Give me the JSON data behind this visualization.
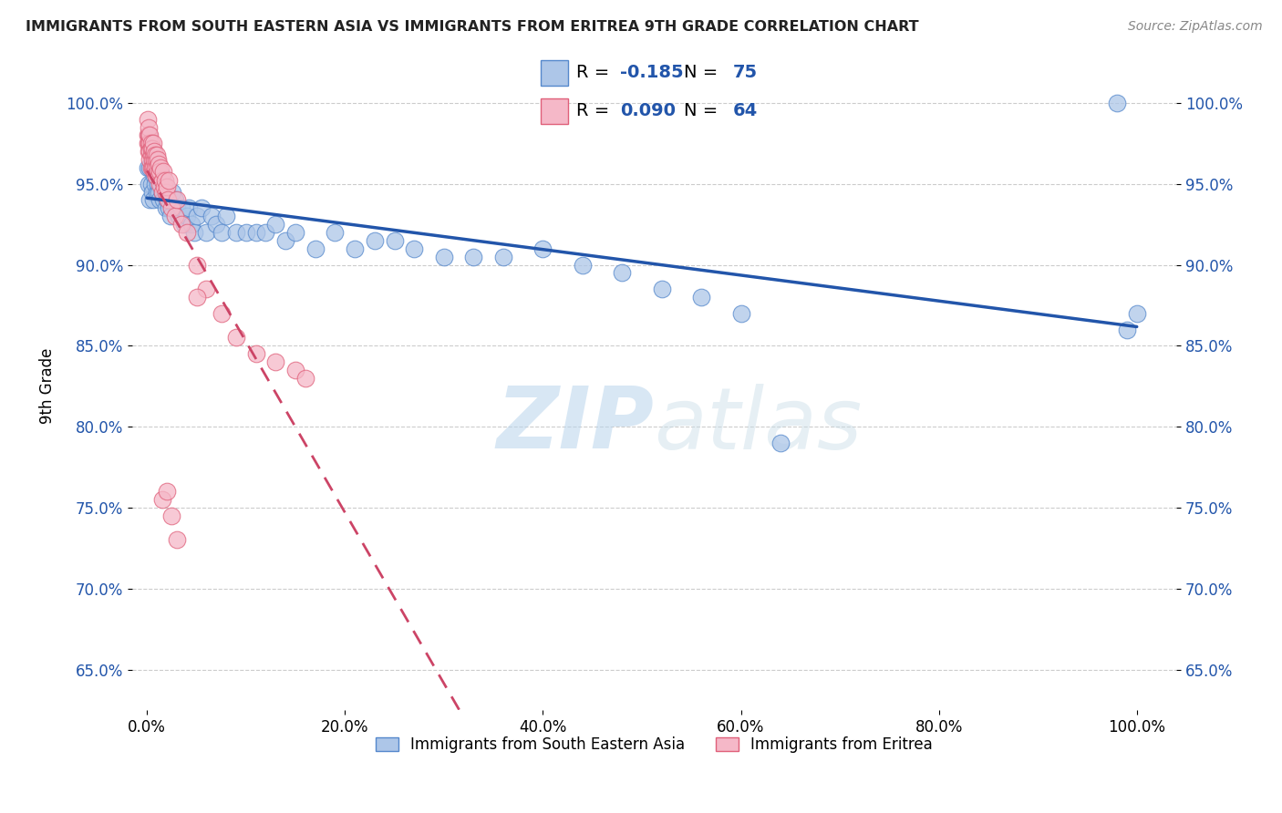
{
  "title": "IMMIGRANTS FROM SOUTH EASTERN ASIA VS IMMIGRANTS FROM ERITREA 9TH GRADE CORRELATION CHART",
  "source_text": "Source: ZipAtlas.com",
  "ylabel": "9th Grade",
  "watermark_zip": "ZIP",
  "watermark_atlas": "atlas",
  "r_blue": -0.185,
  "n_blue": 75,
  "r_pink": 0.09,
  "n_pink": 64,
  "blue_color": "#adc6e8",
  "blue_edge_color": "#5588cc",
  "blue_line_color": "#2255aa",
  "pink_color": "#f5b8c8",
  "pink_edge_color": "#e0607a",
  "pink_line_color": "#cc4466",
  "legend_label_blue": "Immigrants from South Eastern Asia",
  "legend_label_pink": "Immigrants from Eritrea",
  "blue_scatter_x": [
    0.001,
    0.002,
    0.002,
    0.003,
    0.003,
    0.004,
    0.004,
    0.005,
    0.005,
    0.006,
    0.006,
    0.007,
    0.007,
    0.008,
    0.008,
    0.009,
    0.01,
    0.01,
    0.011,
    0.012,
    0.012,
    0.013,
    0.014,
    0.015,
    0.015,
    0.016,
    0.017,
    0.018,
    0.019,
    0.02,
    0.022,
    0.024,
    0.026,
    0.028,
    0.03,
    0.032,
    0.035,
    0.038,
    0.04,
    0.042,
    0.045,
    0.048,
    0.05,
    0.055,
    0.06,
    0.065,
    0.07,
    0.075,
    0.08,
    0.09,
    0.1,
    0.11,
    0.12,
    0.13,
    0.14,
    0.15,
    0.17,
    0.19,
    0.21,
    0.23,
    0.25,
    0.27,
    0.3,
    0.33,
    0.36,
    0.4,
    0.44,
    0.48,
    0.52,
    0.56,
    0.6,
    0.64,
    0.98,
    0.99,
    1.0
  ],
  "blue_scatter_y": [
    0.96,
    0.95,
    0.98,
    0.94,
    0.96,
    0.95,
    0.97,
    0.945,
    0.965,
    0.94,
    0.96,
    0.955,
    0.965,
    0.95,
    0.96,
    0.955,
    0.945,
    0.96,
    0.95,
    0.945,
    0.955,
    0.94,
    0.95,
    0.945,
    0.955,
    0.94,
    0.95,
    0.945,
    0.935,
    0.94,
    0.935,
    0.93,
    0.945,
    0.94,
    0.935,
    0.93,
    0.935,
    0.925,
    0.93,
    0.935,
    0.925,
    0.92,
    0.93,
    0.935,
    0.92,
    0.93,
    0.925,
    0.92,
    0.93,
    0.92,
    0.92,
    0.92,
    0.92,
    0.925,
    0.915,
    0.92,
    0.91,
    0.92,
    0.91,
    0.915,
    0.915,
    0.91,
    0.905,
    0.905,
    0.905,
    0.91,
    0.9,
    0.895,
    0.885,
    0.88,
    0.87,
    0.79,
    1.0,
    0.86,
    0.87
  ],
  "pink_scatter_x": [
    0.001,
    0.001,
    0.001,
    0.002,
    0.002,
    0.002,
    0.002,
    0.003,
    0.003,
    0.003,
    0.003,
    0.004,
    0.004,
    0.004,
    0.004,
    0.005,
    0.005,
    0.005,
    0.006,
    0.006,
    0.006,
    0.007,
    0.007,
    0.007,
    0.008,
    0.008,
    0.009,
    0.009,
    0.01,
    0.01,
    0.011,
    0.011,
    0.012,
    0.012,
    0.013,
    0.013,
    0.014,
    0.015,
    0.015,
    0.016,
    0.017,
    0.018,
    0.019,
    0.02,
    0.021,
    0.022,
    0.025,
    0.028,
    0.03,
    0.035,
    0.04,
    0.05,
    0.06,
    0.075,
    0.09,
    0.11,
    0.13,
    0.15,
    0.16,
    0.05,
    0.015,
    0.02,
    0.025,
    0.03
  ],
  "pink_scatter_y": [
    0.99,
    0.98,
    0.975,
    0.98,
    0.975,
    0.985,
    0.97,
    0.975,
    0.97,
    0.98,
    0.965,
    0.975,
    0.968,
    0.96,
    0.972,
    0.965,
    0.972,
    0.96,
    0.968,
    0.96,
    0.975,
    0.965,
    0.958,
    0.97,
    0.96,
    0.968,
    0.965,
    0.955,
    0.96,
    0.968,
    0.958,
    0.965,
    0.955,
    0.962,
    0.958,
    0.95,
    0.96,
    0.952,
    0.945,
    0.958,
    0.948,
    0.952,
    0.945,
    0.948,
    0.94,
    0.952,
    0.935,
    0.93,
    0.94,
    0.925,
    0.92,
    0.9,
    0.885,
    0.87,
    0.855,
    0.845,
    0.84,
    0.835,
    0.83,
    0.88,
    0.755,
    0.76,
    0.745,
    0.73
  ],
  "yticks": [
    0.65,
    0.7,
    0.75,
    0.8,
    0.85,
    0.9,
    0.95,
    1.0
  ],
  "ytick_labels": [
    "65.0%",
    "70.0%",
    "75.0%",
    "80.0%",
    "85.0%",
    "90.0%",
    "95.0%",
    "100.0%"
  ],
  "xticks": [
    0.0,
    0.2,
    0.4,
    0.6,
    0.8,
    1.0
  ],
  "xtick_labels": [
    "0.0%",
    "20.0%",
    "40.0%",
    "60.0%",
    "80.0%",
    "100.0%"
  ],
  "ylim": [
    0.625,
    1.025
  ],
  "xlim": [
    -0.015,
    1.04
  ],
  "title_color": "#222222",
  "source_color": "#888888",
  "tick_color": "#2255aa",
  "grid_color": "#cccccc",
  "watermark_color": "#c8ddf0"
}
